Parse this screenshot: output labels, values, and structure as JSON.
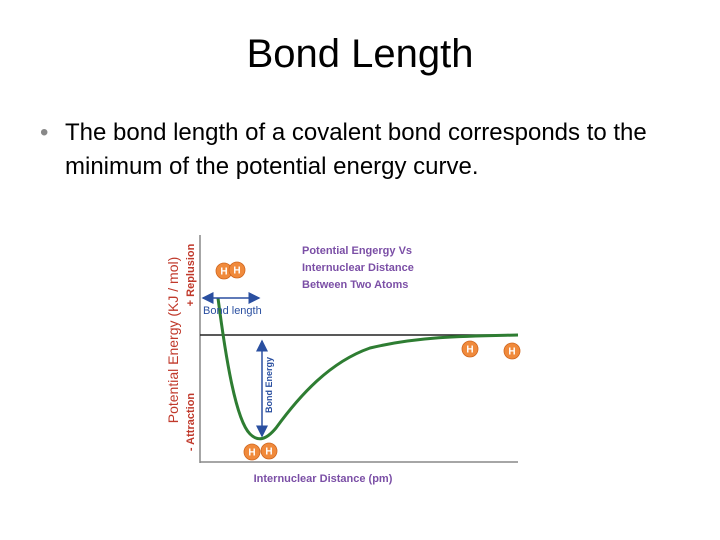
{
  "slide": {
    "title": "Bond Length",
    "bullet": "The bond length of a covalent bond corresponds to the minimum of the potential energy curve.",
    "diagram": {
      "title_lines": [
        "Potential Engergy Vs",
        "Internuclear Distance",
        "Between Two Atoms"
      ],
      "y_axis_label": "Potential Energy (KJ / mol)",
      "repulsion_label": "+ Replusion",
      "attraction_label": "- Attraction",
      "x_axis_label": "Internuclear Distance (pm)",
      "bond_length_label": "Bond length",
      "bond_energy_label": "Bond Energy",
      "atoms": [
        "H",
        "H",
        "H",
        "H",
        "H",
        "H"
      ]
    }
  }
}
